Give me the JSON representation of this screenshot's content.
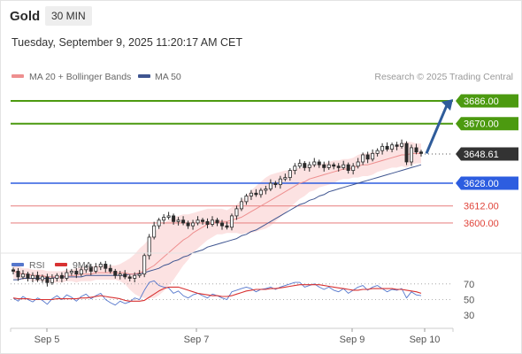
{
  "header": {
    "title": "Gold",
    "timeframe": "30 MIN",
    "datetime": "Tuesday, September 9, 2025 11:20:17 AM CET"
  },
  "legend": {
    "ma20": "MA 20 + Bollinger Bands",
    "ma50": "MA 50",
    "credit": "Research © 2025 Trading Central"
  },
  "colors": {
    "up_target": "#4c9a10",
    "pivot": "#2d5de0",
    "support": "#e98a8a",
    "current": "#333333",
    "ma20": "#ee8f8f",
    "ma50": "#3f5590",
    "band_fill": "#fbdddd",
    "arrow": "#2f5c9a",
    "rsi": "#5577cc",
    "rsi_ma": "#d83232"
  },
  "chart_data": [
    {
      "type": "candlestick",
      "title": "",
      "x_ticks": [
        "Sep 5",
        "Sep 7",
        "Sep 9",
        "Sep 10"
      ],
      "ylim": [
        3580,
        3696
      ],
      "levels": [
        {
          "label": "3686.00",
          "value": 3686.0,
          "role": "target"
        },
        {
          "label": "3670.00",
          "value": 3670.0,
          "role": "target"
        },
        {
          "label": "3648.61",
          "value": 3648.61,
          "role": "current"
        },
        {
          "label": "3628.00",
          "value": 3628.0,
          "role": "pivot"
        },
        {
          "label": "3612.00",
          "value": 3612.0,
          "role": "support"
        },
        {
          "label": "3600.00",
          "value": 3600.0,
          "role": "support"
        }
      ],
      "series": [
        {
          "name": "MA 20 + Bollinger Bands",
          "key": "ma20"
        },
        {
          "name": "MA 50",
          "key": "ma50"
        }
      ],
      "close": [
        3566,
        3562,
        3564,
        3561,
        3563,
        3560,
        3562,
        3558,
        3561,
        3563,
        3561,
        3565,
        3566,
        3564,
        3567,
        3569,
        3566,
        3569,
        3571,
        3568,
        3566,
        3563,
        3564,
        3562,
        3561,
        3563,
        3564,
        3577,
        3590,
        3598,
        3602,
        3604,
        3605,
        3601,
        3602,
        3600,
        3598,
        3600,
        3602,
        3601,
        3599,
        3602,
        3600,
        3598,
        3597,
        3605,
        3610,
        3615,
        3619,
        3621,
        3620,
        3623,
        3624,
        3628,
        3627,
        3631,
        3632,
        3637,
        3640,
        3642,
        3639,
        3641,
        3643,
        3641,
        3639,
        3641,
        3640,
        3639,
        3641,
        3637,
        3640,
        3643,
        3648,
        3645,
        3649,
        3651,
        3654,
        3652,
        3655,
        3654,
        3656,
        3643,
        3653,
        3650,
        3649
      ],
      "ma20": [
        3566,
        3565,
        3564,
        3564,
        3563,
        3563,
        3563,
        3562,
        3562,
        3562,
        3562,
        3563,
        3563,
        3563,
        3564,
        3564,
        3564,
        3565,
        3565,
        3565,
        3565,
        3565,
        3565,
        3565,
        3564,
        3564,
        3565,
        3566,
        3568,
        3570,
        3573,
        3576,
        3579,
        3582,
        3585,
        3588,
        3590,
        3593,
        3595,
        3597,
        3599,
        3600,
        3601,
        3601,
        3601,
        3602,
        3603,
        3604,
        3606,
        3608,
        3610,
        3612,
        3614,
        3616,
        3618,
        3620,
        3622,
        3624,
        3626,
        3628,
        3629,
        3631,
        3632,
        3633,
        3634,
        3635,
        3636,
        3637,
        3638,
        3638,
        3639,
        3640,
        3641,
        3641,
        3642,
        3643,
        3644,
        3645,
        3646,
        3647,
        3648,
        3648,
        3649,
        3649,
        3649
      ],
      "ma50": [
        3560,
        3560,
        3561,
        3561,
        3561,
        3561,
        3561,
        3561,
        3561,
        3562,
        3562,
        3562,
        3562,
        3562,
        3562,
        3563,
        3563,
        3563,
        3563,
        3563,
        3563,
        3563,
        3563,
        3563,
        3564,
        3564,
        3564,
        3565,
        3566,
        3567,
        3568,
        3570,
        3571,
        3573,
        3574,
        3576,
        3577,
        3579,
        3580,
        3581,
        3583,
        3584,
        3585,
        3586,
        3587,
        3588,
        3589,
        3591,
        3592,
        3594,
        3595,
        3597,
        3599,
        3601,
        3603,
        3605,
        3607,
        3609,
        3611,
        3613,
        3614,
        3616,
        3617,
        3619,
        3620,
        3622,
        3623,
        3624,
        3625,
        3626,
        3627,
        3628,
        3629,
        3630,
        3631,
        3632,
        3633,
        3634,
        3635,
        3636,
        3637,
        3638,
        3639,
        3640,
        3641
      ],
      "band_half_width": [
        5,
        5,
        4,
        4,
        4,
        4,
        4,
        4,
        4,
        4,
        4,
        4,
        4,
        5,
        5,
        5,
        5,
        5,
        5,
        5,
        5,
        5,
        6,
        8,
        11,
        14,
        17,
        19,
        21,
        23,
        24,
        24,
        23,
        22,
        20,
        18,
        16,
        14,
        13,
        12,
        11,
        10,
        9,
        9,
        8,
        9,
        10,
        12,
        13,
        15,
        16,
        17,
        18,
        18,
        17,
        16,
        15,
        13,
        12,
        11,
        10,
        9,
        9,
        8,
        8,
        8,
        8,
        7,
        7,
        7,
        7,
        8,
        8,
        8,
        8,
        7,
        7,
        7,
        7,
        8,
        8,
        9,
        8,
        7,
        7
      ]
    },
    {
      "type": "line",
      "title": "",
      "ylim": [
        20,
        80
      ],
      "y_ticks": [
        "70",
        "50",
        "30"
      ],
      "series": [
        {
          "name": "RSI",
          "key": "rsi"
        },
        {
          "name": "9MA",
          "key": "rsi_ma"
        }
      ],
      "rsi": [
        52,
        48,
        54,
        50,
        47,
        52,
        49,
        44,
        51,
        55,
        50,
        56,
        53,
        48,
        54,
        57,
        51,
        55,
        58,
        50,
        46,
        43,
        48,
        45,
        47,
        52,
        50,
        62,
        72,
        74,
        68,
        66,
        65,
        58,
        61,
        55,
        52,
        56,
        58,
        55,
        52,
        57,
        55,
        52,
        50,
        60,
        62,
        64,
        66,
        64,
        60,
        63,
        64,
        66,
        63,
        66,
        68,
        70,
        72,
        72,
        66,
        68,
        70,
        66,
        63,
        66,
        62,
        60,
        64,
        58,
        62,
        66,
        68,
        62,
        66,
        68,
        64,
        60,
        63,
        62,
        64,
        52,
        60,
        56,
        55
      ],
      "rsi_ma": [
        52,
        51,
        51,
        51,
        50,
        50,
        50,
        50,
        50,
        51,
        51,
        51,
        51,
        51,
        52,
        52,
        53,
        54,
        55,
        54,
        53,
        52,
        51,
        49,
        48,
        48,
        48,
        49,
        53,
        57,
        61,
        64,
        66,
        66,
        66,
        64,
        62,
        60,
        58,
        57,
        56,
        55,
        55,
        54,
        54,
        55,
        57,
        59,
        61,
        62,
        63,
        63,
        63,
        64,
        64,
        65,
        66,
        67,
        68,
        69,
        69,
        69,
        69,
        69,
        68,
        67,
        66,
        65,
        64,
        63,
        62,
        62,
        63,
        63,
        64,
        64,
        64,
        64,
        64,
        63,
        63,
        62,
        61,
        60,
        58
      ]
    }
  ]
}
